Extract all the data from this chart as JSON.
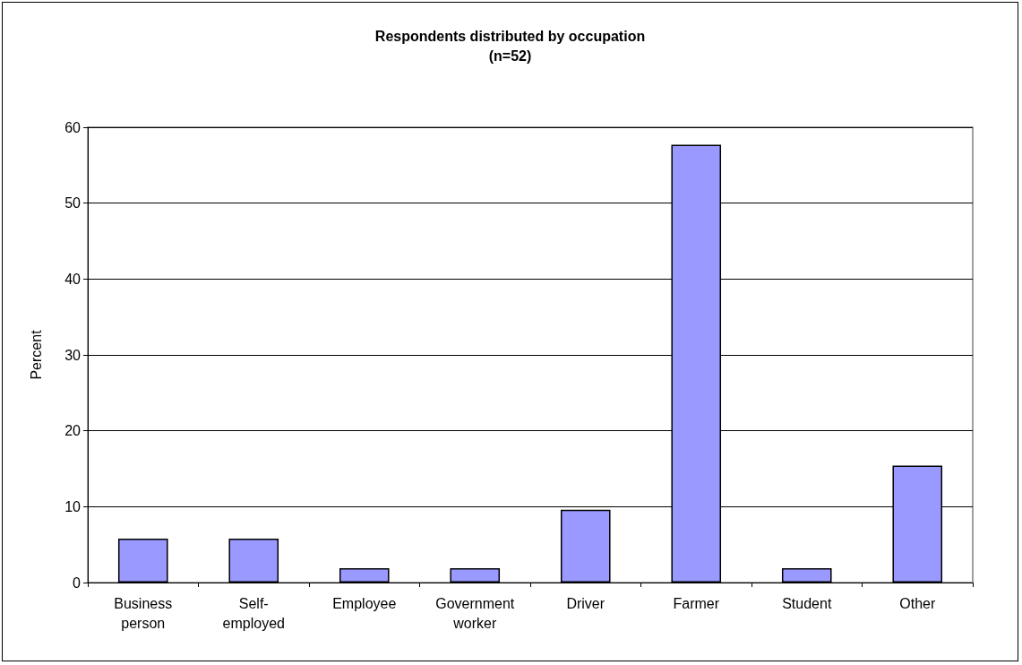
{
  "chart_data": {
    "type": "bar",
    "title": "Respondents distributed by occupation",
    "subtitle": "(n=52)",
    "ylabel": "Percent",
    "categories": [
      "Business person",
      "Self-employed",
      "Employee",
      "Government worker",
      "Driver",
      "Farmer",
      "Student",
      "Other"
    ],
    "values": [
      5.8,
      5.8,
      1.9,
      1.9,
      9.6,
      57.7,
      1.9,
      15.4
    ],
    "color": "#9999ff",
    "ylim": [
      0,
      60
    ],
    "yticks": [
      0,
      10,
      20,
      30,
      40,
      50,
      60
    ],
    "grid": "y"
  }
}
